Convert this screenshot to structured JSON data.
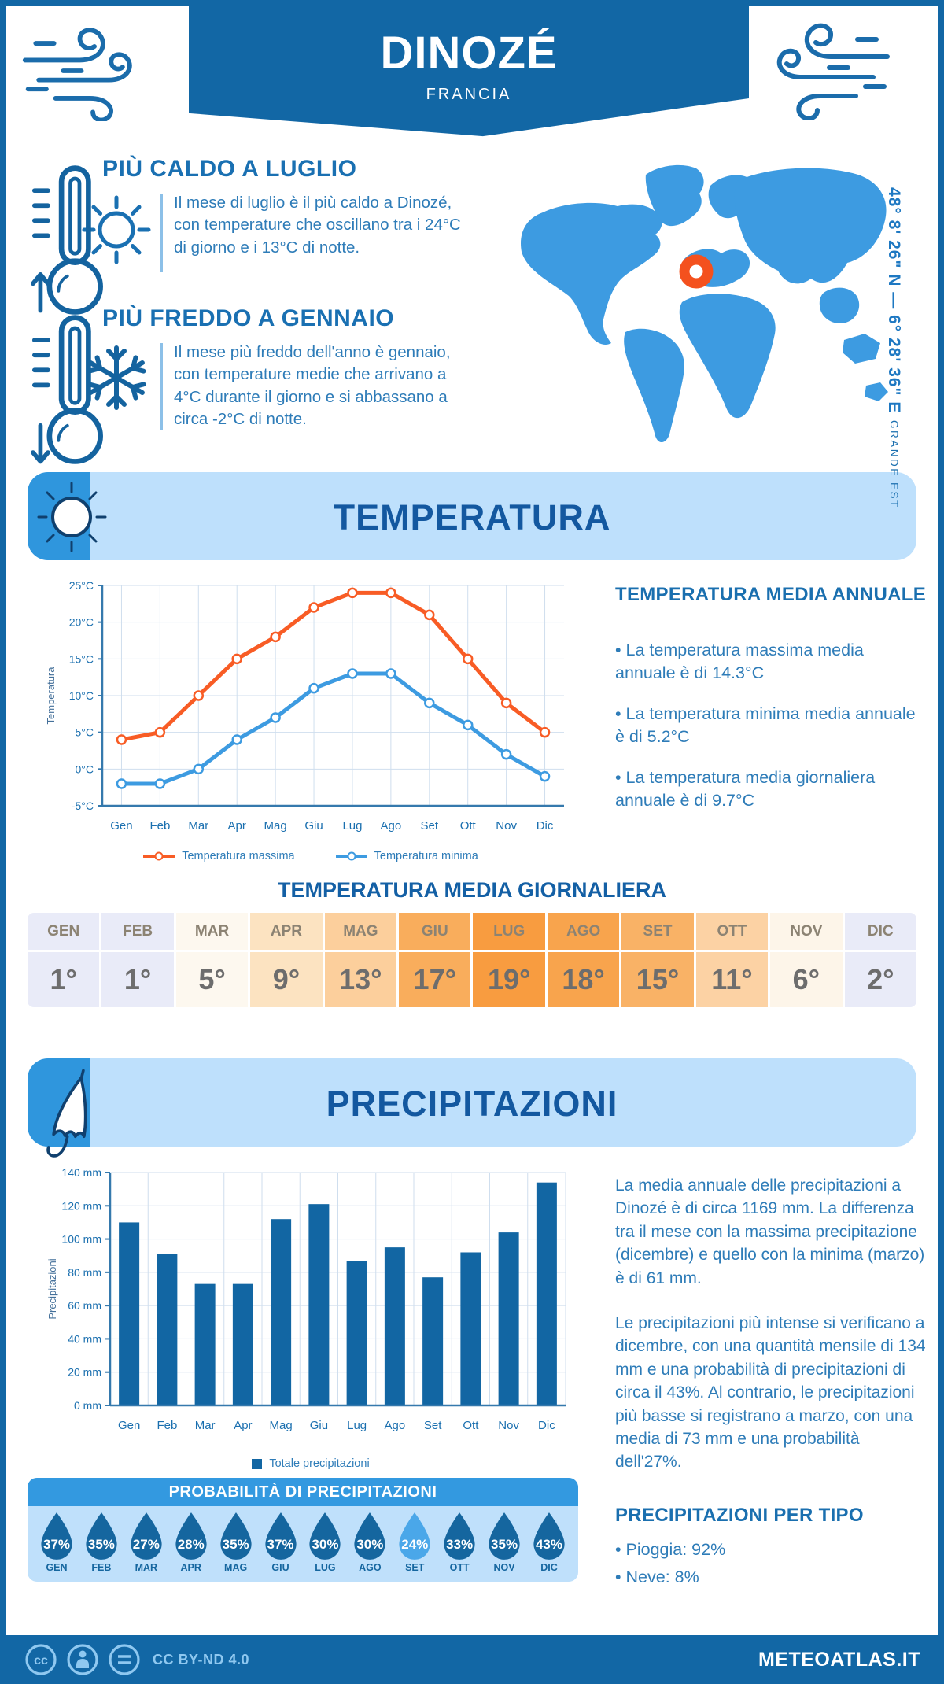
{
  "header": {
    "title": "DINOZÉ",
    "subtitle": "FRANCIA"
  },
  "location": {
    "coordinates": "48° 8' 26\" N — 6° 28' 36\" E",
    "region": "GRANDE EST"
  },
  "highlights": {
    "hot": {
      "title": "PIÙ CALDO A LUGLIO",
      "text": "Il mese di luglio è il più caldo a Dinozé, con temperature che oscillano tra i 24°C di giorno e i 13°C di notte."
    },
    "cold": {
      "title": "PIÙ FREDDO A GENNAIO",
      "text": "Il mese più freddo dell'anno è gennaio, con temperature medie che arrivano a 4°C durante il giorno e si abbassano a circa -2°C di notte."
    }
  },
  "temperature_section": {
    "banner": "TEMPERATURA",
    "annual": {
      "title": "TEMPERATURA MEDIA ANNUALE",
      "bullets": [
        "• La temperatura massima media annuale è di 14.3°C",
        "• La temperatura minima media annuale è di 5.2°C",
        "• La temperatura media giornaliera annuale è di 9.7°C"
      ]
    },
    "daily": {
      "title": "TEMPERATURA MEDIA GIORNALIERA",
      "months": [
        "GEN",
        "FEB",
        "MAR",
        "APR",
        "MAG",
        "GIU",
        "LUG",
        "AGO",
        "SET",
        "OTT",
        "NOV",
        "DIC"
      ],
      "values": [
        "1°",
        "1°",
        "5°",
        "9°",
        "13°",
        "17°",
        "19°",
        "18°",
        "15°",
        "11°",
        "6°",
        "2°"
      ],
      "cell_colors": [
        "#e9ebf8",
        "#e9ebf8",
        "#fdf8ef",
        "#fce3c1",
        "#fccf9c",
        "#f9ad5c",
        "#f89c40",
        "#f8a44d",
        "#f9b266",
        "#fcd2a4",
        "#fdf5e9",
        "#e9ebf8"
      ]
    }
  },
  "precipitation_section": {
    "banner": "PRECIPITAZIONI",
    "paragraphs": [
      "La media annuale delle precipitazioni a Dinozé è di circa 1169 mm. La differenza tra il mese con la massima precipitazione (dicembre) e quello con la minima (marzo) è di 61 mm.",
      "Le precipitazioni più intense si verificano a dicembre, con una quantità mensile di 134 mm e una probabilità di precipitazioni di circa il 43%. Al contrario, le precipitazioni più basse si registrano a marzo, con una media di 73 mm e una probabilità dell'27%."
    ],
    "probability": {
      "title": "PROBABILITÀ DI PRECIPITAZIONI",
      "months": [
        "GEN",
        "FEB",
        "MAR",
        "APR",
        "MAG",
        "GIU",
        "LUG",
        "AGO",
        "SET",
        "OTT",
        "NOV",
        "DIC"
      ],
      "values": [
        37,
        35,
        27,
        28,
        35,
        37,
        30,
        30,
        24,
        33,
        35,
        43
      ],
      "highlight_index": 8,
      "drop_color": "#15669f",
      "highlight_color": "#4aa7e9"
    },
    "by_type": {
      "title": "PRECIPITAZIONI PER TIPO",
      "bullets": [
        "• Pioggia: 92%",
        "• Neve: 8%"
      ]
    }
  },
  "footer": {
    "license": "CC BY-ND 4.0",
    "brand": "METEOATLAS.IT"
  },
  "chart_data": [
    {
      "type": "line",
      "title": "",
      "categories": [
        "Gen",
        "Feb",
        "Mar",
        "Apr",
        "Mag",
        "Giu",
        "Lug",
        "Ago",
        "Set",
        "Ott",
        "Nov",
        "Dic"
      ],
      "ylabel": "Temperatura",
      "y_unit": "°C",
      "ylim": [
        -5,
        25
      ],
      "y_step": 5,
      "grid": true,
      "legend_position": "bottom",
      "series": [
        {
          "name": "Temperatura massima",
          "color": "#f85c25",
          "values": [
            4,
            5,
            10,
            15,
            18,
            22,
            24,
            24,
            21,
            15,
            9,
            5
          ]
        },
        {
          "name": "Temperatura minima",
          "color": "#3d9be1",
          "values": [
            -2,
            -2,
            0,
            4,
            7,
            11,
            13,
            13,
            9,
            6,
            2,
            -1
          ]
        }
      ]
    },
    {
      "type": "bar",
      "title": "",
      "categories": [
        "Gen",
        "Feb",
        "Mar",
        "Apr",
        "Mag",
        "Giu",
        "Lug",
        "Ago",
        "Set",
        "Ott",
        "Nov",
        "Dic"
      ],
      "values": [
        110,
        91,
        73,
        73,
        112,
        121,
        87,
        95,
        77,
        92,
        104,
        134
      ],
      "ylabel": "Precipitazioni",
      "y_unit": " mm",
      "ylim": [
        0,
        140
      ],
      "y_step": 20,
      "grid": true,
      "bar_color": "#1266a3",
      "legend": "Totale precipitazioni",
      "legend_position": "bottom"
    },
    {
      "type": "table",
      "title": "TEMPERATURA MEDIA GIORNALIERA",
      "categories": [
        "GEN",
        "FEB",
        "MAR",
        "APR",
        "MAG",
        "GIU",
        "LUG",
        "AGO",
        "SET",
        "OTT",
        "NOV",
        "DIC"
      ],
      "values": [
        1,
        1,
        5,
        9,
        13,
        17,
        19,
        18,
        15,
        11,
        6,
        2
      ]
    },
    {
      "type": "table",
      "title": "PROBABILITÀ DI PRECIPITAZIONI (%)",
      "categories": [
        "GEN",
        "FEB",
        "MAR",
        "APR",
        "MAG",
        "GIU",
        "LUG",
        "AGO",
        "SET",
        "OTT",
        "NOV",
        "DIC"
      ],
      "values": [
        37,
        35,
        27,
        28,
        35,
        37,
        30,
        30,
        24,
        33,
        35,
        43
      ]
    }
  ]
}
